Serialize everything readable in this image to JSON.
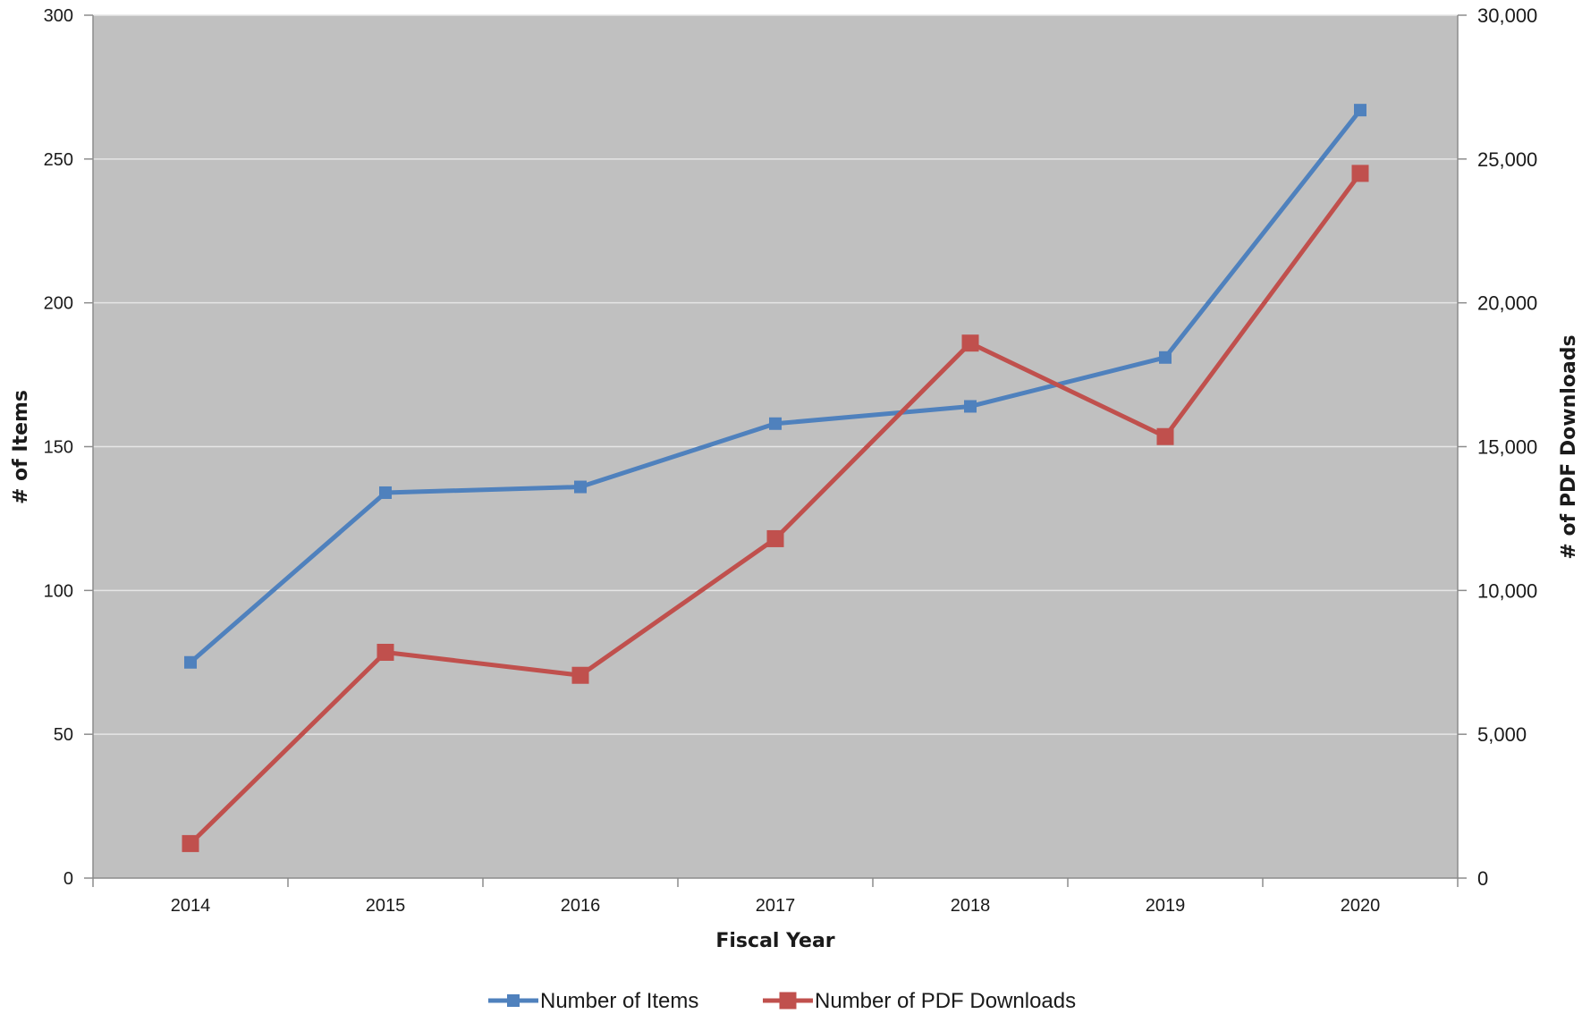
{
  "chart_data": {
    "type": "line",
    "xlabel": "Fiscal Year",
    "ylabel_left": "# of Items",
    "ylabel_right": "# of PDF Downloads",
    "categories": [
      "2014",
      "2015",
      "2016",
      "2017",
      "2018",
      "2019",
      "2020"
    ],
    "ylim_left": [
      0,
      300
    ],
    "ylim_right": [
      0,
      30000
    ],
    "yticks_left": [
      "0",
      "50",
      "100",
      "150",
      "200",
      "250",
      "300"
    ],
    "yticks_right": [
      "0",
      "5,000",
      "10,000",
      "15,000",
      "20,000",
      "25,000",
      "30,000"
    ],
    "grid": true,
    "legend_position": "bottom",
    "plot_background": "#c0c0c0",
    "series": [
      {
        "name": "Number of Items",
        "axis": "left",
        "color": "#4f81bd",
        "marker": "square",
        "values": [
          75,
          134,
          136,
          158,
          164,
          181,
          267
        ]
      },
      {
        "name": "Number of PDF Downloads",
        "axis": "right",
        "color": "#c0504d",
        "marker": "square",
        "values": [
          1200,
          7850,
          7050,
          11800,
          18600,
          15350,
          24500
        ]
      }
    ]
  }
}
